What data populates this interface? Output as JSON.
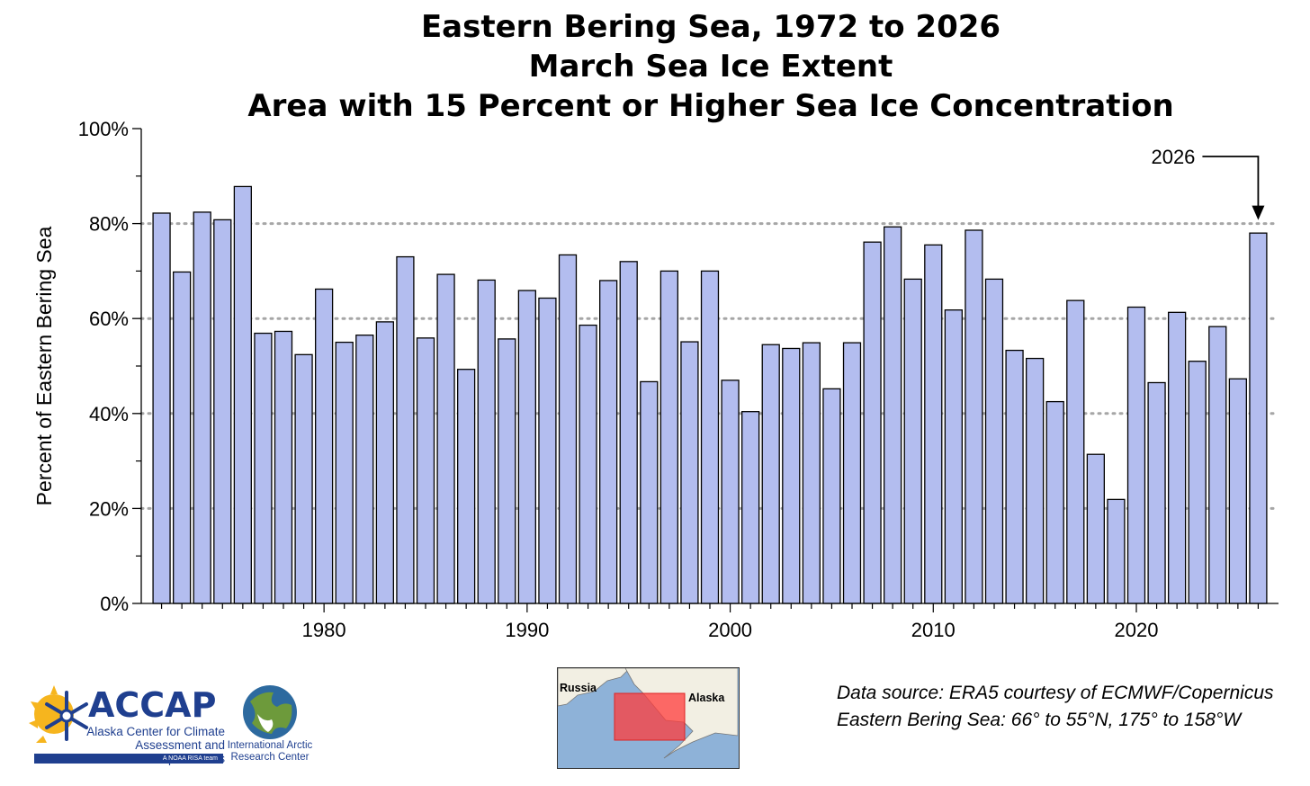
{
  "chart_data": {
    "type": "bar",
    "title_lines": [
      "Eastern Bering Sea, 1972 to 2026",
      "March Sea Ice Extent",
      "Area with 15 Percent or Higher Sea Ice Concentration"
    ],
    "ylabel": "Percent of Eastern Bering Sea",
    "xlabel": "",
    "ylim": [
      0,
      100
    ],
    "xlim": [
      1971,
      2027
    ],
    "y_ticks": [
      "0%",
      "20%",
      "40%",
      "60%",
      "80%",
      "100%"
    ],
    "x_ticks": [
      "1980",
      "1990",
      "2000",
      "2010",
      "2020"
    ],
    "grid": "horizontal dotted at 20, 40, 60, 80",
    "bar_color": "#b3bdef",
    "years": [
      1972,
      1973,
      1974,
      1975,
      1976,
      1977,
      1978,
      1979,
      1980,
      1981,
      1982,
      1983,
      1984,
      1985,
      1986,
      1987,
      1988,
      1989,
      1990,
      1991,
      1992,
      1993,
      1994,
      1995,
      1996,
      1997,
      1998,
      1999,
      2000,
      2001,
      2002,
      2003,
      2004,
      2005,
      2006,
      2007,
      2008,
      2009,
      2010,
      2011,
      2012,
      2013,
      2014,
      2015,
      2016,
      2017,
      2018,
      2019,
      2020,
      2021,
      2022,
      2023,
      2024,
      2025,
      2026
    ],
    "values": [
      82.2,
      69.8,
      82.4,
      80.8,
      87.8,
      56.9,
      57.3,
      52.4,
      66.2,
      55.0,
      56.5,
      59.3,
      73.0,
      55.9,
      69.3,
      49.3,
      68.1,
      55.7,
      65.9,
      64.3,
      73.4,
      58.6,
      68.0,
      72.0,
      46.7,
      70.0,
      55.1,
      70.0,
      47.0,
      40.4,
      54.5,
      53.7,
      54.9,
      45.2,
      54.9,
      76.1,
      79.3,
      68.3,
      75.5,
      61.8,
      78.6,
      68.3,
      53.3,
      51.6,
      42.5,
      63.8,
      31.4,
      21.9,
      62.4,
      46.5,
      61.3,
      51.0,
      58.3,
      47.3,
      78.0
    ],
    "annotation": {
      "label": "2026",
      "target_year": 2026
    }
  },
  "footer": {
    "accap": {
      "name": "ACCAP",
      "subtitle_line1": "Alaska Center for Climate",
      "subtitle_line2": "Assessment and Preparedness",
      "tagline": "A NOAA RISA team"
    },
    "iarc": {
      "line1": "International Arctic",
      "line2": "Research Center"
    },
    "map": {
      "label_russia": "Russia",
      "label_alaska": "Alaska"
    },
    "source_line1": "Data source: ERA5 courtesy of ECMWF/Copernicus",
    "source_line2": "Eastern Bering Sea: 66° to 55°N, 175° to 158°W"
  }
}
